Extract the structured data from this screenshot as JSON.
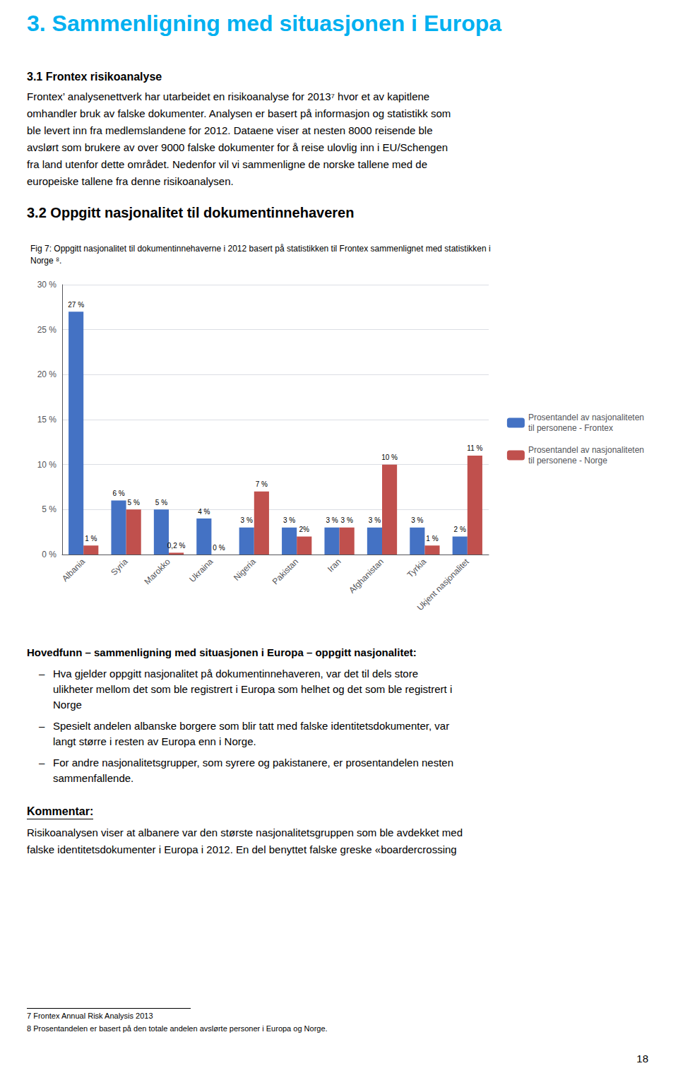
{
  "page": {
    "page_title": "3. Sammenligning med situasjonen i Europa",
    "title_color": "#00B0F0",
    "section_title": "3.1 Frontex risikoanalyse",
    "body": [
      "Frontex’ analysenettverk har utarbeidet en risikoanalyse for 2013⁷ hvor et av kapitlene",
      "omhandler bruk av falske dokumenter. Analysen er basert på informasjon og statistikk som",
      "ble levert inn fra medlemslandene for 2012. Dataene viser at nesten 8000 reisende ble",
      "avslørt som brukere av over 9000 falske dokumenter for å reise ulovlig inn i EU/Schengen",
      "fra land utenfor dette området. Nedenfor vil vi sammenligne de norske tallene med de",
      "europeiske tallene fra denne risikoanalysen."
    ],
    "chart_section_title": "3.2 Oppgitt nasjonalitet til dokumentinnehaveren",
    "findings_title": "Hovedfunn – sammenligning med situasjonen i Europa – oppgitt nasjonalitet:",
    "bullet": "–",
    "findings": [
      [
        "Hva gjelder oppgitt nasjonalitet på dokumentinnehaveren, var det til dels store",
        "ulikheter mellom det som ble registrert i Europa som helhet og det som ble registrert i",
        "Norge"
      ],
      [
        "Spesielt andelen albanske borgere som blir tatt med falske identitetsdokumenter, var",
        "langt større i resten av Europa enn i Norge."
      ],
      [
        "For andre nasjonalitetsgrupper, som syrere og pakistanere, er prosentandelen nesten",
        "sammenfallende."
      ]
    ],
    "kommentar_title": "Kommentar:",
    "kommentar_body": [
      "Risikoanalysen viser at albanere var den største nasjonalitetsgruppen som ble avdekket med",
      "falske identitetsdokumenter i Europa i 2012. En del benyttet falske greske «boardercrossing"
    ],
    "footnotes": [
      "7  Frontex Annual Risk Analysis 2013",
      "8  Prosentandelen er basert på den totale andelen avslørte personer i Europa og Norge."
    ],
    "page_number": "18"
  },
  "chart_data": {
    "type": "bar",
    "title": "Fig 7: Oppgitt nasjonalitet til dokumentinnehaverne i 2012 basert på statistikken til Frontex sammenlignet med statistikken i\nNorge ⁸.",
    "categories": [
      "Albania",
      "Syria",
      "Marokko",
      "Ukraina",
      "Nigeria",
      "Pakistan",
      "Iran",
      "Afghanistan",
      "Tyrkia",
      "Ukjent nasjonalitet"
    ],
    "series": [
      {
        "name": "Prosentandel av nasjonaliteten\ntil personene - Frontex",
        "color": "#4472C4",
        "values": [
          27,
          6,
          5,
          4,
          3,
          3,
          3,
          3,
          3,
          2
        ],
        "value_labels": [
          "27 %",
          "6 %",
          "5 %",
          "4 %",
          "3 %",
          "3 %",
          "3 %",
          "3 %",
          "3 %",
          "2 %"
        ]
      },
      {
        "name": "Prosentandel av nasjonaliteten\ntil personene - Norge",
        "color": "#C0504D",
        "values": [
          1,
          5,
          0.2,
          0,
          7,
          2,
          3,
          10,
          1,
          11
        ],
        "value_labels": [
          "1 %",
          "5 %",
          "0,2 %",
          "0 %",
          "7 %",
          "2%",
          "3 %",
          "10 %",
          "1 %",
          "11 %"
        ]
      }
    ],
    "ylim": [
      0,
      30
    ],
    "yticks": [
      {
        "value": 0,
        "label": "0 %"
      },
      {
        "value": 5,
        "label": "5 %"
      },
      {
        "value": 10,
        "label": "10 %"
      },
      {
        "value": 15,
        "label": "15 %"
      },
      {
        "value": 20,
        "label": "20 %"
      },
      {
        "value": 25,
        "label": "25 %"
      },
      {
        "value": 30,
        "label": "30 %"
      }
    ],
    "grid": true,
    "legend": "right",
    "data_labels": true
  }
}
